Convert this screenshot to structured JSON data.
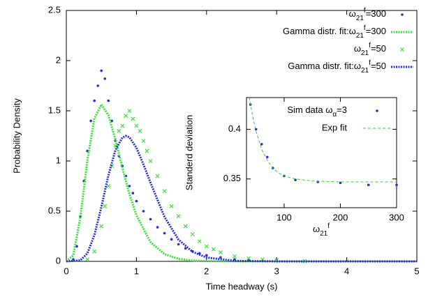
{
  "chart_data": [
    {
      "type": "scatter",
      "xlabel": "Time headway (s)",
      "ylabel": "Probability Density",
      "xlim": [
        0,
        5
      ],
      "ylim": [
        0,
        2.5
      ],
      "xticks": [
        0,
        1,
        2,
        3,
        4,
        5
      ],
      "yticks": [
        0,
        0.5,
        1,
        1.5,
        2,
        2.5
      ],
      "legend": "top right",
      "series": [
        {
          "name": "ω21f=300",
          "color": "#1f2ee0",
          "mode": "markers",
          "marker": "circle",
          "x": [
            0.1,
            0.15,
            0.2,
            0.25,
            0.3,
            0.35,
            0.4,
            0.45,
            0.5,
            0.55,
            0.6,
            0.65,
            0.7,
            0.75,
            0.8,
            0.85,
            0.9,
            0.95,
            1.0,
            1.1,
            1.2,
            1.3,
            1.4,
            1.5,
            1.6,
            1.7,
            1.8,
            1.9,
            2.0,
            2.2,
            2.4,
            2.6,
            3.0
          ],
          "values": [
            0.02,
            0.15,
            0.45,
            0.8,
            1.1,
            1.4,
            1.6,
            1.75,
            1.9,
            1.82,
            1.6,
            1.4,
            1.2,
            1.05,
            0.95,
            0.85,
            0.75,
            0.68,
            0.6,
            0.5,
            0.42,
            0.34,
            0.28,
            0.22,
            0.17,
            0.13,
            0.1,
            0.08,
            0.06,
            0.04,
            0.02,
            0.01,
            0.005
          ]
        },
        {
          "name": "Gamma distr. fit:ω21f=300",
          "color": "#33e633",
          "mode": "lines",
          "dash": "dotted",
          "x": [
            0,
            0.1,
            0.2,
            0.3,
            0.4,
            0.5,
            0.6,
            0.7,
            0.8,
            0.9,
            1.0,
            1.2,
            1.4,
            1.6,
            1.8,
            2.0,
            2.5,
            5
          ],
          "values": [
            0,
            0.061,
            0.441,
            1.004,
            1.426,
            1.563,
            1.457,
            1.213,
            0.93,
            0.669,
            0.458,
            0.192,
            0.072,
            0.025,
            0.008,
            0.002,
            0,
            0
          ]
        },
        {
          "name": "ω21f=50",
          "color": "#33e633",
          "mode": "markers",
          "marker": "cross",
          "x": [
            0.3,
            0.4,
            0.5,
            0.55,
            0.6,
            0.65,
            0.7,
            0.75,
            0.8,
            0.85,
            0.9,
            0.95,
            1.0,
            1.05,
            1.1,
            1.15,
            1.2,
            1.3,
            1.4,
            1.5,
            1.6,
            1.7,
            1.8,
            1.9,
            2.0,
            2.1,
            2.2,
            2.4,
            2.6,
            2.8,
            3.0,
            3.4
          ],
          "values": [
            0.02,
            0.1,
            0.35,
            0.55,
            0.75,
            0.95,
            1.15,
            1.3,
            1.35,
            1.45,
            1.5,
            1.42,
            1.35,
            1.3,
            1.2,
            1.1,
            1.0,
            0.85,
            0.7,
            0.55,
            0.45,
            0.35,
            0.27,
            0.2,
            0.15,
            0.12,
            0.09,
            0.05,
            0.03,
            0.02,
            0.01,
            0.005
          ]
        },
        {
          "name": "Gamma distr. fit:ω21f=50",
          "color": "#1f2ee0",
          "mode": "lines",
          "dash": "dotted",
          "x": [
            0,
            0.2,
            0.3,
            0.4,
            0.5,
            0.6,
            0.7,
            0.8,
            0.85,
            0.9,
            1.0,
            1.1,
            1.2,
            1.4,
            1.6,
            1.8,
            2.0,
            2.4,
            3.0,
            5
          ],
          "values": [
            0,
            0.01,
            0.079,
            0.262,
            0.543,
            0.857,
            1.109,
            1.234,
            1.25,
            1.237,
            1.131,
            0.967,
            0.785,
            0.443,
            0.217,
            0.096,
            0.038,
            0.005,
            0,
            0
          ]
        }
      ]
    },
    {
      "type": "scatter",
      "xlabel": "ω21f",
      "ylabel": "Standerd deviation",
      "xlim": [
        33,
        300
      ],
      "ylim": [
        0.321,
        0.432
      ],
      "xticks": [
        100,
        200,
        300
      ],
      "yticks": [
        0.35,
        0.4
      ],
      "legend": "top right",
      "series": [
        {
          "name": "Sim data ωα=3",
          "color": "#1f2ee0",
          "mode": "markers",
          "marker": "circle",
          "x": [
            40,
            50,
            60,
            70,
            80,
            100,
            120,
            160,
            200,
            250,
            300
          ],
          "values": [
            0.425,
            0.4,
            0.385,
            0.372,
            0.361,
            0.353,
            0.349,
            0.347,
            0.346,
            0.344,
            0.344
          ]
        },
        {
          "name": "Exp fit",
          "color": "#33cc33",
          "mode": "lines",
          "dash": "dashed",
          "x": [
            38,
            45,
            50,
            60,
            70,
            80,
            90,
            100,
            120,
            150,
            200,
            300
          ],
          "values": [
            0.432,
            0.41,
            0.398,
            0.38,
            0.369,
            0.361,
            0.356,
            0.353,
            0.35,
            0.348,
            0.347,
            0.347
          ]
        }
      ]
    }
  ]
}
